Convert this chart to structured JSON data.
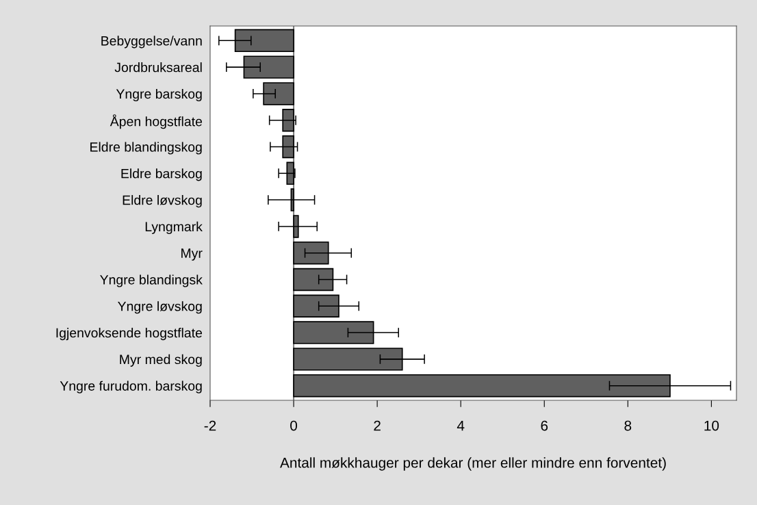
{
  "chart_data": {
    "type": "bar",
    "orientation": "horizontal",
    "categories": [
      "Bebyggelse/vann",
      "Jordbruksareal",
      "Yngre barskog",
      "Åpen hogstflate",
      "Eldre blandingskog",
      "Eldre barskog",
      "Eldre løvskog",
      "Lyngmark",
      "Myr",
      "Yngre blandingsk",
      "Yngre løvskog",
      "Igjenvoksende hogstflate",
      "Myr med skog",
      "Yngre furudom. barskog"
    ],
    "values": [
      -1.4,
      -1.19,
      -0.72,
      -0.26,
      -0.26,
      -0.16,
      -0.06,
      0.11,
      0.83,
      0.94,
      1.08,
      1.91,
      2.6,
      9.01
    ],
    "errors": [
      [
        -1.79,
        -1.02
      ],
      [
        -1.61,
        -0.8
      ],
      [
        -0.97,
        -0.44
      ],
      [
        -0.58,
        0.05
      ],
      [
        -0.56,
        0.09
      ],
      [
        -0.36,
        0.03
      ],
      [
        -0.61,
        0.5
      ],
      [
        -0.36,
        0.56
      ],
      [
        0.27,
        1.38
      ],
      [
        0.6,
        1.27
      ],
      [
        0.6,
        1.56
      ],
      [
        1.3,
        2.51
      ],
      [
        2.07,
        3.13
      ],
      [
        7.56,
        10.46
      ]
    ],
    "color": "#606060",
    "xlabel": "Antall møkkhauger per dekar (mer eller mindre enn forventet)",
    "xlim": [
      -2,
      10.6
    ],
    "xticks": [
      -2,
      0,
      2,
      4,
      6,
      8,
      10
    ],
    "ref_lines": [
      {
        "axis": "x",
        "value": 0,
        "color": "#808080"
      }
    ],
    "grid": false,
    "legend": false
  }
}
